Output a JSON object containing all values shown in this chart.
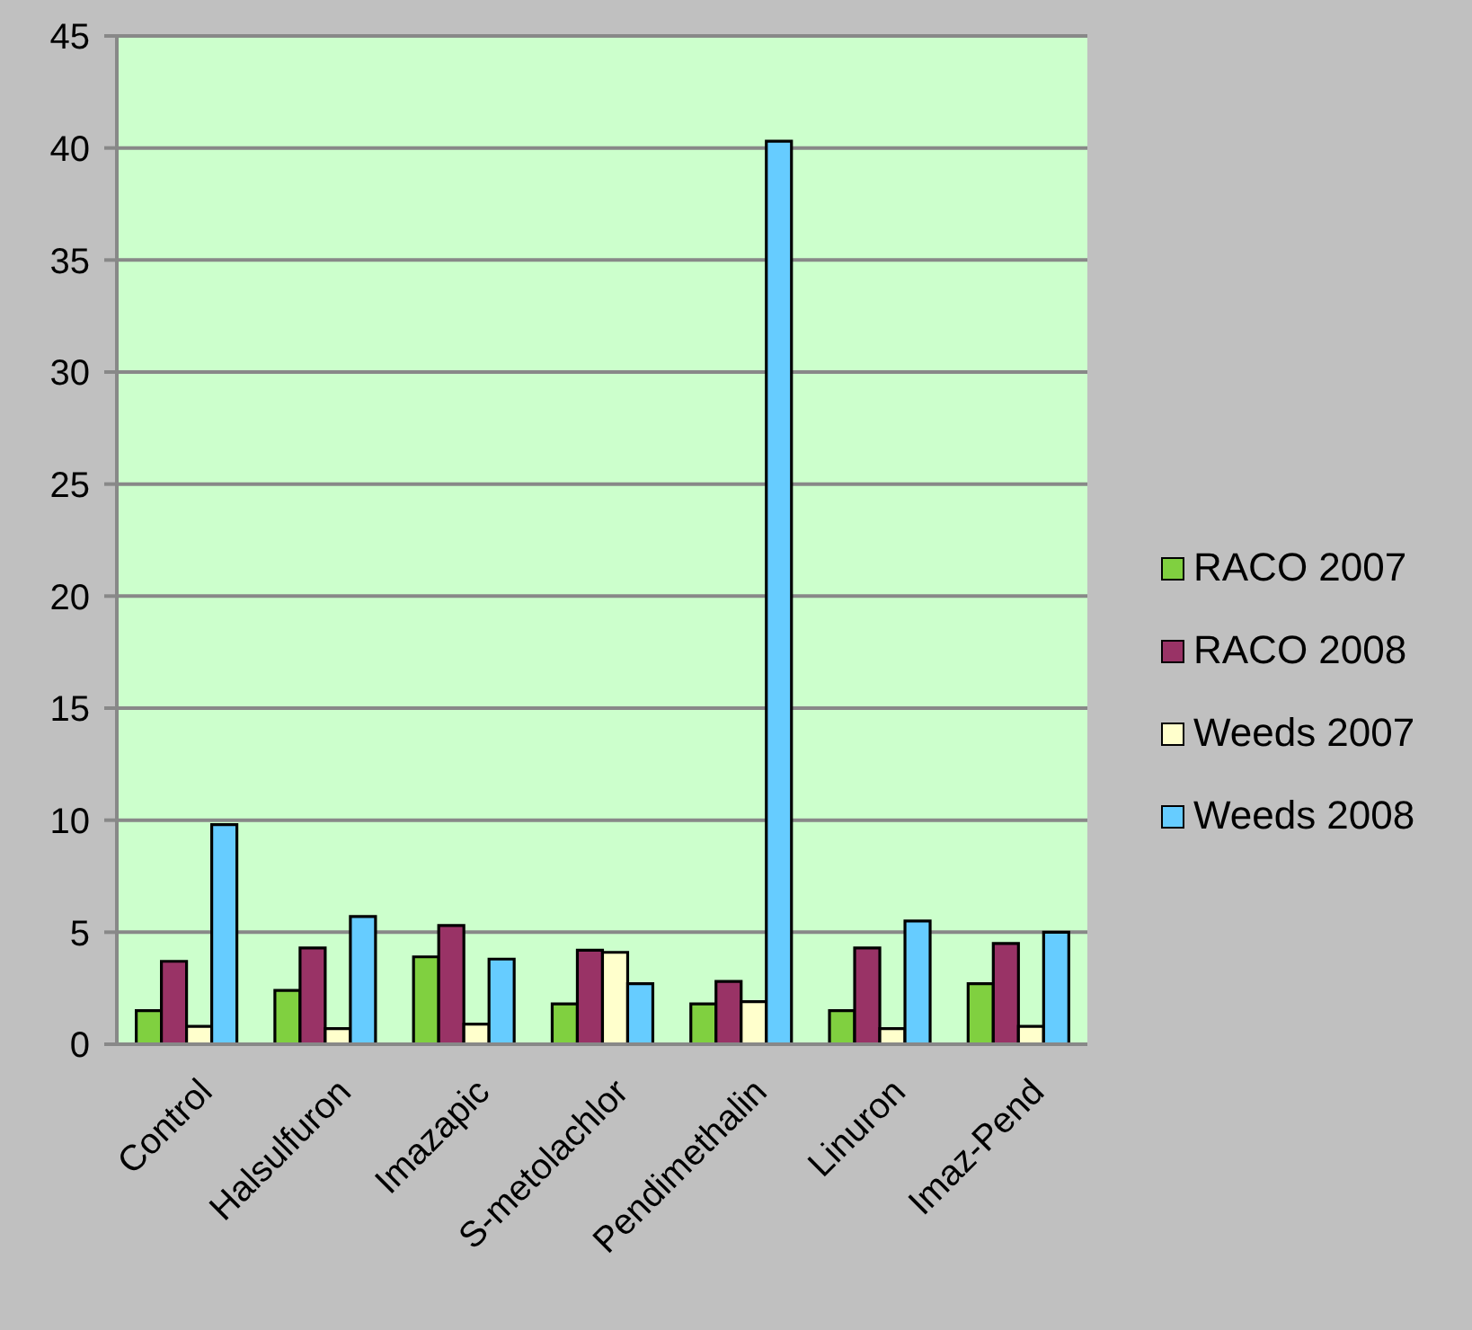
{
  "chart_data": {
    "type": "bar",
    "categories": [
      "Control",
      "Halsulfuron",
      "Imazapic",
      "S-metolachlor",
      "Pendimethalin",
      "Linuron",
      "Imaz-Pend"
    ],
    "series": [
      {
        "name": "RACO 2007",
        "color": "#80d040",
        "values": [
          1.5,
          2.4,
          3.9,
          1.8,
          1.8,
          1.5,
          2.7
        ]
      },
      {
        "name": "RACO 2008",
        "color": "#993366",
        "values": [
          3.7,
          4.3,
          5.3,
          4.2,
          2.8,
          4.3,
          4.5
        ]
      },
      {
        "name": "Weeds 2007",
        "color": "#ffffcc",
        "values": [
          0.8,
          0.7,
          0.9,
          4.1,
          1.9,
          0.7,
          0.8
        ]
      },
      {
        "name": "Weeds 2008",
        "color": "#66ccff",
        "values": [
          9.8,
          5.7,
          3.8,
          2.7,
          40.3,
          5.5,
          5.0
        ]
      }
    ],
    "ylim": [
      0,
      45
    ],
    "yticks": [
      0,
      5,
      10,
      15,
      20,
      25,
      30,
      35,
      40,
      45
    ],
    "grid": "y",
    "legend": "right"
  }
}
